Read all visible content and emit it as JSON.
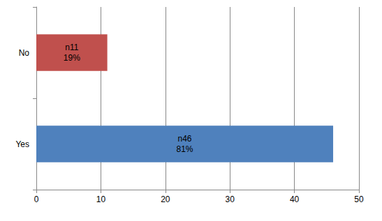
{
  "chart_data": {
    "type": "bar",
    "orientation": "horizontal",
    "categories": [
      "No",
      "Yes"
    ],
    "values": [
      11,
      46
    ],
    "value_labels": [
      "n11\n19%",
      "n46\n81%"
    ],
    "colors": [
      "#c0504d",
      "#4f81bd"
    ],
    "xlim": [
      0,
      50
    ],
    "xticks": [
      0,
      10,
      20,
      30,
      40,
      50
    ],
    "grid": true,
    "data_labels": true
  }
}
